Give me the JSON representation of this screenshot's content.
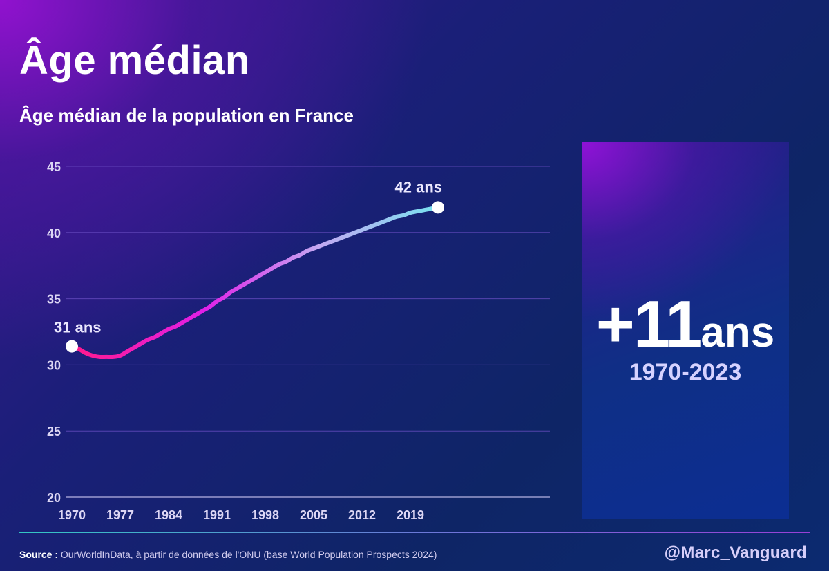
{
  "header": {
    "title": "Âge médian",
    "subtitle": "Âge médian de la population en France"
  },
  "chart_data": {
    "type": "line",
    "title": "Âge médian",
    "subtitle": "Âge médian de la population en France",
    "xlabel": "",
    "ylabel": "",
    "xlim": [
      1970,
      2023
    ],
    "ylim": [
      20,
      45
    ],
    "x_ticks": [
      "1970",
      "1977",
      "1984",
      "1991",
      "1998",
      "2005",
      "2012",
      "2019"
    ],
    "y_ticks": [
      "20",
      "25",
      "30",
      "35",
      "40",
      "45"
    ],
    "grid": true,
    "legend": "none",
    "series": [
      {
        "x": [
          1970,
          1971,
          1972,
          1973,
          1974,
          1975,
          1976,
          1977,
          1978,
          1979,
          1980,
          1981,
          1982,
          1983,
          1984,
          1985,
          1986,
          1987,
          1988,
          1989,
          1990,
          1991,
          1992,
          1993,
          1994,
          1995,
          1996,
          1997,
          1998,
          1999,
          2000,
          2001,
          2002,
          2003,
          2004,
          2005,
          2006,
          2007,
          2008,
          2009,
          2010,
          2011,
          2012,
          2013,
          2014,
          2015,
          2016,
          2017,
          2018,
          2019,
          2020,
          2021,
          2022,
          2023
        ],
        "y": [
          31.4,
          31.2,
          30.9,
          30.7,
          30.6,
          30.6,
          30.6,
          30.7,
          31.0,
          31.3,
          31.6,
          31.9,
          32.1,
          32.4,
          32.7,
          32.9,
          33.2,
          33.5,
          33.8,
          34.1,
          34.4,
          34.8,
          35.1,
          35.5,
          35.8,
          36.1,
          36.4,
          36.7,
          37.0,
          37.3,
          37.6,
          37.8,
          38.1,
          38.3,
          38.6,
          38.8,
          39.0,
          39.2,
          39.4,
          39.6,
          39.8,
          40.0,
          40.2,
          40.4,
          40.6,
          40.8,
          41.0,
          41.2,
          41.3,
          41.5,
          41.6,
          41.7,
          41.8,
          41.9
        ]
      }
    ],
    "annotations": {
      "start": {
        "label": "31 ans",
        "x": 1970,
        "y": 31.4
      },
      "end": {
        "label": "42 ans",
        "x": 2023,
        "y": 41.9
      }
    },
    "colors": {
      "start": "#ff1a8c",
      "mid_1": "#e020e8",
      "mid_2": "#c4a8f2",
      "mid_3": "#70e8f0",
      "end": "#6ff0c8"
    }
  },
  "kpi": {
    "value": "+11",
    "unit": "ans",
    "range": "1970-2023"
  },
  "footer": {
    "source_label": "Source :",
    "source_text": " OurWorldInData, à partir de données de l'ONU (base World Population Prospects 2024)",
    "handle": "@Marc_Vanguard"
  }
}
